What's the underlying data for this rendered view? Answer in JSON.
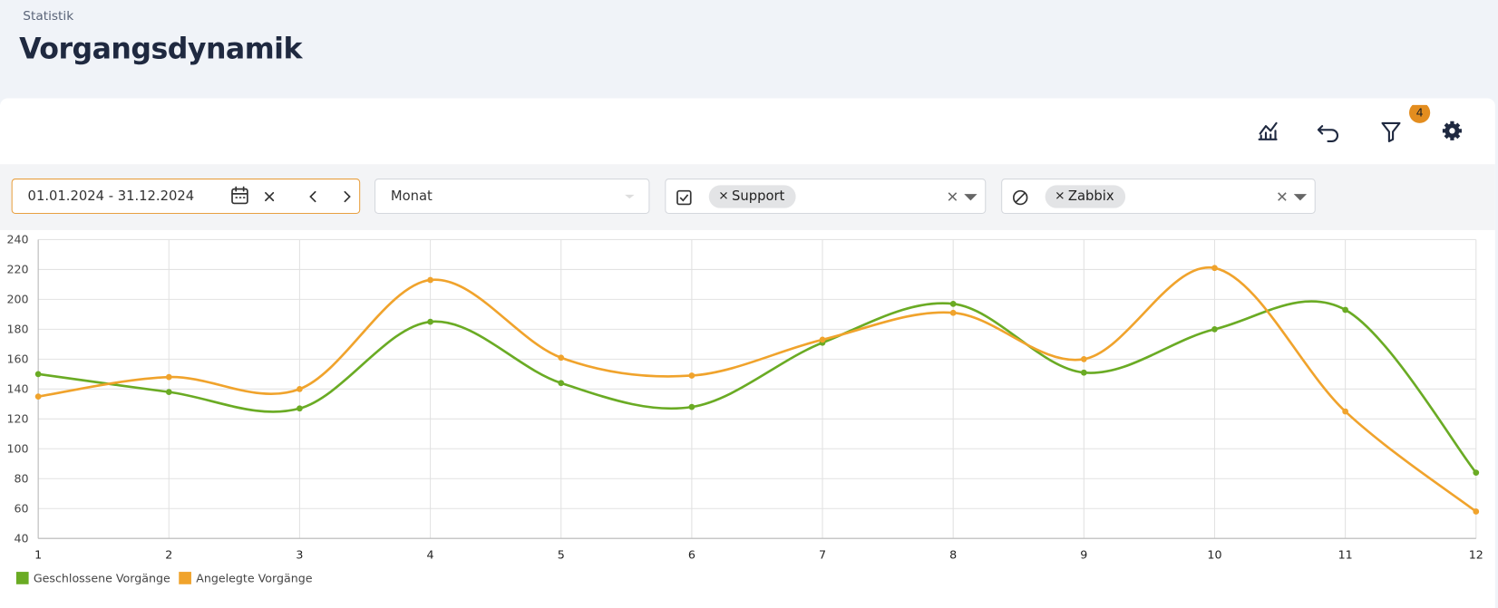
{
  "header": {
    "breadcrumb": "Statistik",
    "title": "Vorgangsdynamik"
  },
  "toolbar": {
    "filter_badge": "4"
  },
  "filters": {
    "date_range": "01.01.2024 - 31.12.2024",
    "interval": "Monat",
    "include_tag": "Support",
    "exclude_tag": "Zabbix"
  },
  "chart_data": {
    "type": "line",
    "categories": [
      "1",
      "2",
      "3",
      "4",
      "5",
      "6",
      "7",
      "8",
      "9",
      "10",
      "11",
      "12"
    ],
    "series": [
      {
        "name": "Geschlossene Vorgänge",
        "color": "#6aab24",
        "values": [
          150,
          138,
          127,
          185,
          144,
          128,
          171,
          197,
          151,
          180,
          193,
          84
        ]
      },
      {
        "name": "Angelegte Vorgänge",
        "color": "#f0a32c",
        "values": [
          135,
          148,
          140,
          213,
          161,
          149,
          173,
          191,
          160,
          221,
          125,
          58
        ]
      }
    ],
    "ylim": [
      40,
      240
    ],
    "yticks": [
      40,
      60,
      80,
      100,
      120,
      140,
      160,
      180,
      200,
      220,
      240
    ],
    "grid": true,
    "legend": "bottom-left"
  }
}
